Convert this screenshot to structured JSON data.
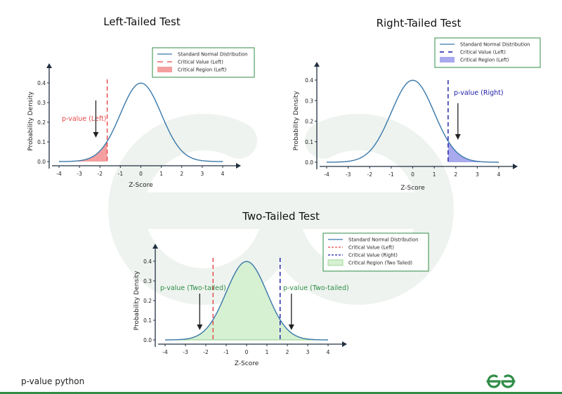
{
  "footer": {
    "text": "p-value python",
    "logo": "geeksforgeeks-logo"
  },
  "colors": {
    "curve": "#3a78aa",
    "left_critical": "#e64646",
    "right_critical": "#1a1aa8",
    "left_fill": "#f4a0a0",
    "right_fill": "#a9a9ee",
    "two_fill": "#d6f0d2",
    "two_fill_stroke": "#8fcf8a",
    "axis": "#203040",
    "legend_border": "#2f8d46",
    "green_text": "#2f8d46",
    "watermark": "#eef3ef"
  },
  "chart_data": [
    {
      "type": "area",
      "title": "Left-Tailed Test",
      "xlabel": "Z-Score",
      "ylabel": "Probability Density",
      "xlim": [
        -4,
        4
      ],
      "ylim": [
        0,
        0.4
      ],
      "xticks": [
        "-4",
        "-3",
        "-2",
        "-1",
        "0",
        "1",
        "2",
        "3",
        "4"
      ],
      "yticks": [
        "0.0",
        "0.1",
        "0.2",
        "0.3",
        "0.4"
      ],
      "critical_values": {
        "left": -1.645
      },
      "shaded_region": [
        -4,
        -1.645
      ],
      "annotation": {
        "text": "p-value (Left)",
        "arrow_x": -2.2
      },
      "legend": {
        "position": "upper-right",
        "entries": [
          {
            "label": "Standard Normal Distribution",
            "kind": "line"
          },
          {
            "label": "Critical Value (Left)",
            "kind": "dash-left"
          },
          {
            "label": "Critical Region (Left)",
            "kind": "fill-left"
          }
        ]
      }
    },
    {
      "type": "area",
      "title": "Right-Tailed Test",
      "xlabel": "Z-Score",
      "ylabel": "Probability Density",
      "xlim": [
        -4,
        4
      ],
      "ylim": [
        0,
        0.4
      ],
      "xticks": [
        "-4",
        "-3",
        "-2",
        "-1",
        "0",
        "1",
        "2",
        "3",
        "4"
      ],
      "yticks": [
        "0.0",
        "0.1",
        "0.2",
        "0.3",
        "0.4"
      ],
      "critical_values": {
        "right": 1.645
      },
      "shaded_region": [
        1.645,
        4
      ],
      "annotation": {
        "text": "p-value (Right)",
        "arrow_x": 2.1
      },
      "legend": {
        "position": "upper-right",
        "entries": [
          {
            "label": "Standard Normal Distribution",
            "kind": "line"
          },
          {
            "label": "Critical Value (Left)",
            "kind": "dash-right"
          },
          {
            "label": "Critical Region (Left)",
            "kind": "fill-right"
          }
        ]
      }
    },
    {
      "type": "area",
      "title": "Two-Tailed Test",
      "xlabel": "Z-Score",
      "ylabel": "Probability Density",
      "xlim": [
        -4,
        4
      ],
      "ylim": [
        0,
        0.4
      ],
      "xticks": [
        "-4",
        "-3",
        "-2",
        "-1",
        "0",
        "1",
        "2",
        "3",
        "4"
      ],
      "yticks": [
        "0.0",
        "0.1",
        "0.2",
        "0.3",
        "0.4"
      ],
      "critical_values": {
        "left": -1.645,
        "right": 1.645
      },
      "shaded_region": [
        -4,
        4
      ],
      "annotations": [
        {
          "text": "p-value (Two-tailed)",
          "arrow_x": -2.3
        },
        {
          "text": "p-value (Two-tailed)",
          "arrow_x": 2.2
        }
      ],
      "legend": {
        "position": "upper-right",
        "entries": [
          {
            "label": "Standard Normal Distribution",
            "kind": "line"
          },
          {
            "label": "Critical Value (Left)",
            "kind": "dash-left"
          },
          {
            "label": "Critical Value (Right)",
            "kind": "dash-right-small"
          },
          {
            "label": "Critical Region (Two Tailed)",
            "kind": "fill-two"
          }
        ]
      }
    }
  ]
}
